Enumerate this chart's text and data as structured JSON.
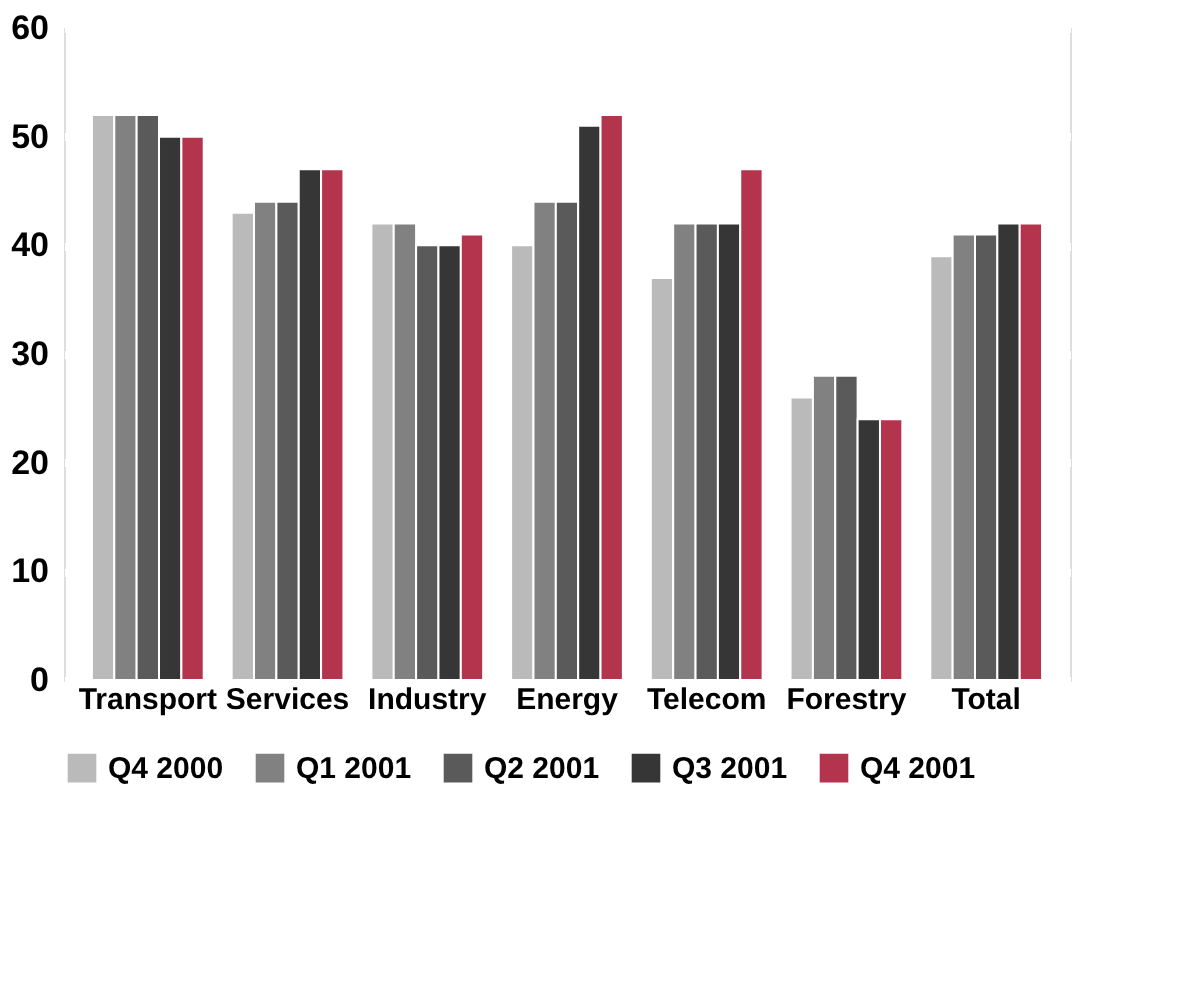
{
  "chart_data": {
    "type": "bar",
    "categories": [
      "Transport",
      "Services",
      "Industry",
      "Energy",
      "Telecom",
      "Forestry",
      "Total"
    ],
    "series": [
      {
        "name": "Q4 2000",
        "color": "#bababa",
        "values": [
          52,
          43,
          42,
          40,
          37,
          26,
          39
        ]
      },
      {
        "name": "Q1 2001",
        "color": "#818181",
        "values": [
          52,
          44,
          42,
          44,
          42,
          28,
          41
        ]
      },
      {
        "name": "Q2 2001",
        "color": "#5a5a5a",
        "values": [
          52,
          44,
          40,
          44,
          42,
          28,
          41
        ]
      },
      {
        "name": "Q3 2001",
        "color": "#363636",
        "values": [
          50,
          47,
          40,
          51,
          42,
          24,
          42
        ]
      },
      {
        "name": "Q4 2001",
        "color": "#b3344c",
        "values": [
          50,
          47,
          41,
          52,
          47,
          24,
          42
        ]
      }
    ],
    "ylim": [
      0,
      60
    ],
    "yticks": [
      0,
      10,
      20,
      30,
      40,
      50,
      60
    ],
    "grid": "y",
    "legend": "bottom"
  }
}
